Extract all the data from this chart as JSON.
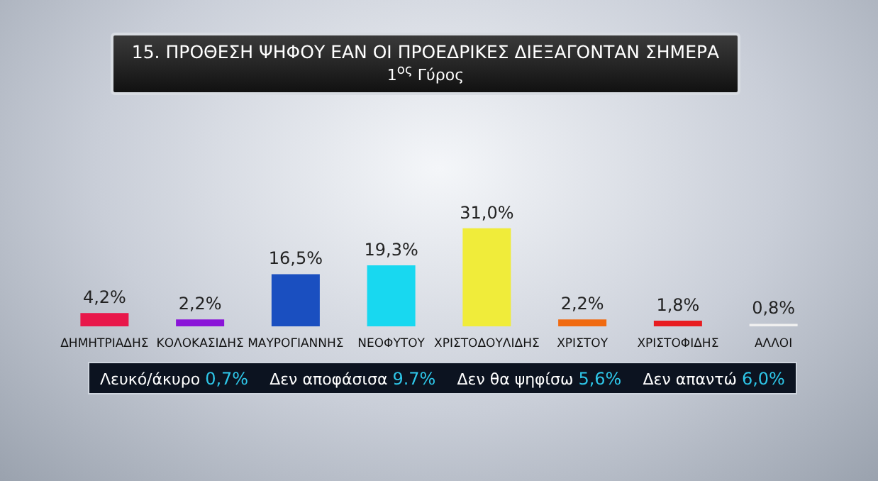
{
  "chart_data": {
    "type": "bar",
    "title": "15. ΠΡΟΘΕΣΗ ΨΗΦΟΥ ΕΑΝ ΟΙ ΠΡΟΕΔΡΙΚΕΣ ΔΙΕΞΑΓΟΝΤΑΝ ΣΗΜΕΡΑ",
    "subtitle": "1$^{ος}$ Γύρος",
    "categories": [
      "ΔΗΜΗΤΡΙΑΔΗΣ",
      "ΚΟΛΟΚΑΣΙΔΗΣ",
      "ΜΑΥΡΟΓΙΑΝΝΗΣ",
      "ΝΕΟΦΥΤΟΥ",
      "ΧΡΙΣΤΟΔΟΥΛΙΔΗΣ",
      "ΧΡΙΣΤΟΥ",
      "ΧΡΙΣΤΟΦΙΔΗΣ",
      "ΑΛΛΟΙ"
    ],
    "values": [
      4.2,
      2.2,
      16.5,
      19.3,
      31.0,
      2.2,
      1.8,
      0.8
    ],
    "value_labels": [
      "4,2%",
      "2,2%",
      "16,5%",
      "19,3%",
      "31,0%",
      "2,2%",
      "1,8%",
      "0,8%"
    ],
    "colors": [
      "#e8174a",
      "#8a14d8",
      "#1a4fc0",
      "#18d8f0",
      "#f0ec3a",
      "#f06a10",
      "#e81c20",
      "#f0f0f0"
    ],
    "annotations": [
      "Λευκό/άκυρο 0,7%",
      "Δεν αποφάσισα 9.7%",
      "Δεν θα ψηφίσω 5,6%",
      "Δεν απαντώ 6,0%"
    ]
  }
}
